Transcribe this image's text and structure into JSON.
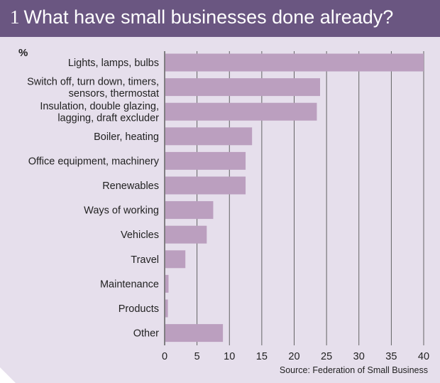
{
  "header": {
    "number": "1",
    "title": "What have small businesses done already?"
  },
  "colors": {
    "header": "#6a5681",
    "panel": "#e6dfec",
    "bar": "#bb9fbf",
    "grid": "#555555"
  },
  "chart_data": {
    "type": "bar",
    "orientation": "horizontal",
    "unit_label": "%",
    "categories": [
      [
        "Lights, lamps, bulbs"
      ],
      [
        "Switch off, turn down, timers,",
        "sensors, thermostat"
      ],
      [
        "Insulation, double glazing,",
        "lagging, draft excluder"
      ],
      [
        "Boiler, heating"
      ],
      [
        "Office equipment, machinery"
      ],
      [
        "Renewables"
      ],
      [
        "Ways of working"
      ],
      [
        "Vehicles"
      ],
      [
        "Travel"
      ],
      [
        "Maintenance"
      ],
      [
        "Products"
      ],
      [
        "Other"
      ]
    ],
    "values": [
      40,
      24,
      23.5,
      13.5,
      12.5,
      12.5,
      7.5,
      6.5,
      3.2,
      0.6,
      0.5,
      9
    ],
    "xlim": [
      0,
      40
    ],
    "xticks": [
      "0",
      "5",
      "10",
      "15",
      "20",
      "25",
      "30",
      "35",
      "40"
    ],
    "grid": "vertical",
    "source": "Source: Federation of Small Business"
  }
}
